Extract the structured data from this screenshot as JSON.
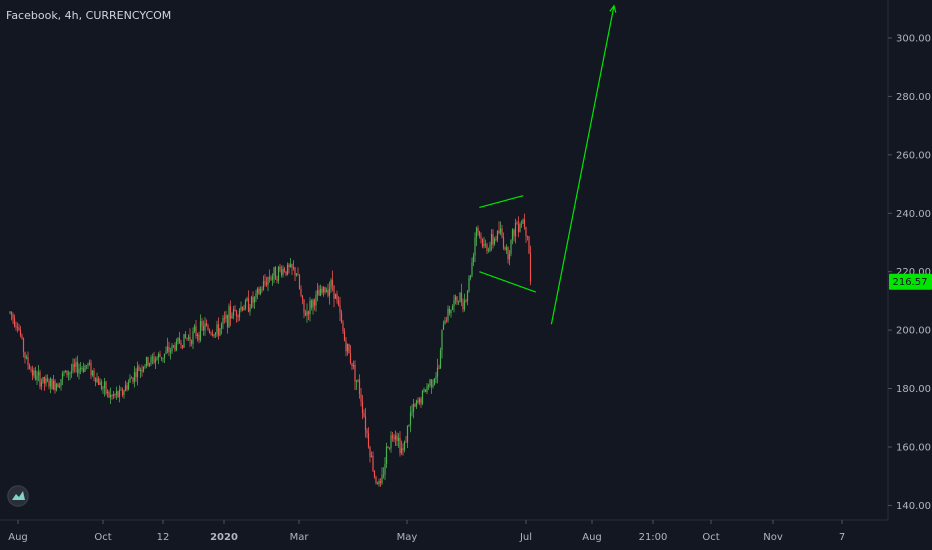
{
  "window": {
    "title": "Facebook, 4h, CURRENCYCOM"
  },
  "colors": {
    "background": "#131722",
    "up": "#4caf50",
    "down": "#ef5350",
    "drawing": "#00e600",
    "price_label_bg": "#00e600",
    "axis_text": "#b2b5be"
  },
  "logo": {
    "icon": "tradingview-logo-icon"
  },
  "chart_data": {
    "type": "candlestick",
    "title": "Facebook, 4h, CURRENCYCOM",
    "ylim": [
      135,
      313
    ],
    "y_ticks": [
      "140.00",
      "160.00",
      "180.00",
      "200.00",
      "220.00",
      "240.00",
      "260.00",
      "280.00",
      "300.00"
    ],
    "y_tick_values": [
      140,
      160,
      180,
      200,
      220,
      240,
      260,
      280,
      300
    ],
    "x_labels": [
      "Aug",
      "Oct",
      "12",
      "2020",
      "Mar",
      "May",
      "Jul",
      "Aug",
      "21:00",
      "Oct",
      "Nov",
      "7"
    ],
    "x_bold_labels": [
      "2020"
    ],
    "last_price": {
      "label": "216.57",
      "value": 216.57
    },
    "price_path": [
      {
        "date": "2019-07-29",
        "price": 206
      },
      {
        "date": "2019-08-03",
        "price": 202
      },
      {
        "date": "2019-08-08",
        "price": 190
      },
      {
        "date": "2019-08-14",
        "price": 184
      },
      {
        "date": "2019-08-20",
        "price": 182
      },
      {
        "date": "2019-08-26",
        "price": 181
      },
      {
        "date": "2019-09-02",
        "price": 185
      },
      {
        "date": "2019-09-10",
        "price": 187
      },
      {
        "date": "2019-09-17",
        "price": 188
      },
      {
        "date": "2019-09-24",
        "price": 182
      },
      {
        "date": "2019-10-01",
        "price": 177
      },
      {
        "date": "2019-10-08",
        "price": 178
      },
      {
        "date": "2019-10-15",
        "price": 184
      },
      {
        "date": "2019-10-22",
        "price": 188
      },
      {
        "date": "2019-10-29",
        "price": 190
      },
      {
        "date": "2019-11-06",
        "price": 192
      },
      {
        "date": "2019-11-14",
        "price": 196
      },
      {
        "date": "2019-11-22",
        "price": 198
      },
      {
        "date": "2019-11-30",
        "price": 201
      },
      {
        "date": "2019-12-08",
        "price": 199
      },
      {
        "date": "2019-12-16",
        "price": 205
      },
      {
        "date": "2019-12-24",
        "price": 208
      },
      {
        "date": "2020-01-01",
        "price": 210
      },
      {
        "date": "2020-01-10",
        "price": 218
      },
      {
        "date": "2020-01-20",
        "price": 221
      },
      {
        "date": "2020-01-28",
        "price": 220
      },
      {
        "date": "2020-02-02",
        "price": 205
      },
      {
        "date": "2020-02-08",
        "price": 210
      },
      {
        "date": "2020-02-14",
        "price": 213
      },
      {
        "date": "2020-02-20",
        "price": 216
      },
      {
        "date": "2020-02-24",
        "price": 207
      },
      {
        "date": "2020-02-28",
        "price": 196
      },
      {
        "date": "2020-03-04",
        "price": 188
      },
      {
        "date": "2020-03-09",
        "price": 178
      },
      {
        "date": "2020-03-13",
        "price": 165
      },
      {
        "date": "2020-03-18",
        "price": 150
      },
      {
        "date": "2020-03-22",
        "price": 146
      },
      {
        "date": "2020-03-26",
        "price": 160
      },
      {
        "date": "2020-03-31",
        "price": 166
      },
      {
        "date": "2020-04-05",
        "price": 158
      },
      {
        "date": "2020-04-10",
        "price": 171
      },
      {
        "date": "2020-04-16",
        "price": 176
      },
      {
        "date": "2020-04-22",
        "price": 182
      },
      {
        "date": "2020-04-28",
        "price": 186
      },
      {
        "date": "2020-05-01",
        "price": 203
      },
      {
        "date": "2020-05-06",
        "price": 208
      },
      {
        "date": "2020-05-11",
        "price": 211
      },
      {
        "date": "2020-05-15",
        "price": 210
      },
      {
        "date": "2020-05-19",
        "price": 222
      },
      {
        "date": "2020-05-22",
        "price": 236
      },
      {
        "date": "2020-05-27",
        "price": 228
      },
      {
        "date": "2020-06-01",
        "price": 230
      },
      {
        "date": "2020-06-06",
        "price": 234
      },
      {
        "date": "2020-06-11",
        "price": 226
      },
      {
        "date": "2020-06-16",
        "price": 236
      },
      {
        "date": "2020-06-21",
        "price": 238
      },
      {
        "date": "2020-06-24",
        "price": 233
      },
      {
        "date": "2020-06-26",
        "price": 216.57
      }
    ],
    "drawings": [
      {
        "name": "upper-trendline",
        "from": {
          "date": "2020-05-24",
          "price": 242
        },
        "to": {
          "date": "2020-06-21",
          "price": 246
        }
      },
      {
        "name": "lower-trendline",
        "from": {
          "date": "2020-05-24",
          "price": 220
        },
        "to": {
          "date": "2020-06-29",
          "price": 213
        }
      },
      {
        "name": "projection-arrow",
        "from": {
          "date": "2020-07-09",
          "price": 202
        },
        "to": {
          "date": "2020-08-18",
          "price": 311
        }
      }
    ]
  }
}
